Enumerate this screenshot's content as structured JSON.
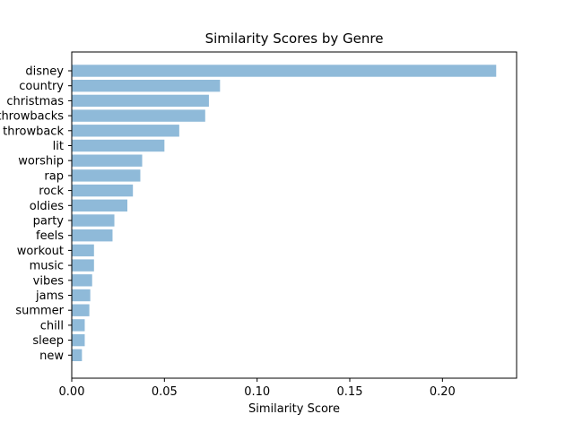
{
  "chart_data": {
    "type": "bar",
    "orientation": "horizontal",
    "title": "Similarity Scores by Genre",
    "xlabel": "Similarity Score",
    "ylabel": "",
    "xlim": [
      0,
      0.24
    ],
    "x_ticks": [
      0.0,
      0.05,
      0.1,
      0.15,
      0.2
    ],
    "x_tick_labels": [
      "0.00",
      "0.05",
      "0.10",
      "0.15",
      "0.20"
    ],
    "grid": false,
    "bar_color": "#8fbad9",
    "categories": [
      "disney",
      "country",
      "christmas",
      "throwbacks",
      "throwback",
      "lit",
      "worship",
      "rap",
      "rock",
      "oldies",
      "party",
      "feels",
      "workout",
      "music",
      "vibes",
      "jams",
      "summer",
      "chill",
      "sleep",
      "new"
    ],
    "values": [
      0.229,
      0.08,
      0.074,
      0.072,
      0.058,
      0.05,
      0.038,
      0.037,
      0.033,
      0.03,
      0.023,
      0.022,
      0.012,
      0.012,
      0.011,
      0.01,
      0.0095,
      0.007,
      0.007,
      0.0055
    ]
  }
}
